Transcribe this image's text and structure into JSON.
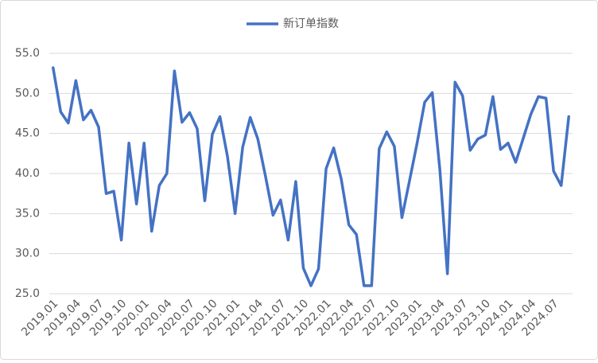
{
  "chart_data": {
    "type": "line",
    "categories": [
      "2019.01",
      null,
      null,
      "2019.04",
      null,
      null,
      "2019.07",
      null,
      null,
      "2019.10",
      null,
      null,
      "2020.01",
      null,
      null,
      "2020.04",
      null,
      null,
      "2020.07",
      null,
      null,
      "2020.10",
      null,
      null,
      "2021.01",
      null,
      null,
      "2021.04",
      null,
      null,
      "2021.07",
      null,
      null,
      "2021.10",
      null,
      null,
      "2022.01",
      null,
      null,
      "2022.04",
      null,
      null,
      "2022.07",
      null,
      null,
      "2022.10",
      null,
      null,
      "2023.01",
      null,
      null,
      "2023.04",
      null,
      null,
      "2023.07",
      null,
      null,
      "2023.10",
      null,
      null,
      "2024.01",
      null,
      null,
      "2024.04",
      null,
      null,
      "2024.07",
      null,
      null
    ],
    "series": [
      {
        "name": "新订单指数",
        "color": "#4472c4",
        "values": [
          53.2,
          47.7,
          46.3,
          51.6,
          46.7,
          47.9,
          45.8,
          37.5,
          37.8,
          31.7,
          43.8,
          36.2,
          43.8,
          32.8,
          38.5,
          40.0,
          52.8,
          46.4,
          47.6,
          45.6,
          36.6,
          44.9,
          47.1,
          42.1,
          35.0,
          43.3,
          47.0,
          44.3,
          39.7,
          34.8,
          36.7,
          31.7,
          39.0,
          28.2,
          26.0,
          28.1,
          40.6,
          43.2,
          39.3,
          33.6,
          32.4,
          26.0,
          26.0,
          43.1,
          45.2,
          43.4,
          34.5,
          39.1,
          43.8,
          48.9,
          50.1,
          40.5,
          27.5,
          51.4,
          49.7,
          42.9,
          44.3,
          44.8,
          49.6,
          43.0,
          43.8,
          41.4,
          44.4,
          47.4,
          49.6,
          49.4,
          40.3,
          38.5,
          47.1
        ]
      }
    ],
    "ylim": [
      25,
      55
    ],
    "yticks": [
      {
        "value": 25,
        "label": "25.0"
      },
      {
        "value": 30,
        "label": "30.0"
      },
      {
        "value": 35,
        "label": "35.0"
      },
      {
        "value": 40,
        "label": "40.0"
      },
      {
        "value": 45,
        "label": "45.0"
      },
      {
        "value": 50,
        "label": "50.0"
      },
      {
        "value": 55,
        "label": "55.0"
      }
    ],
    "grid": true,
    "legend": "top"
  }
}
